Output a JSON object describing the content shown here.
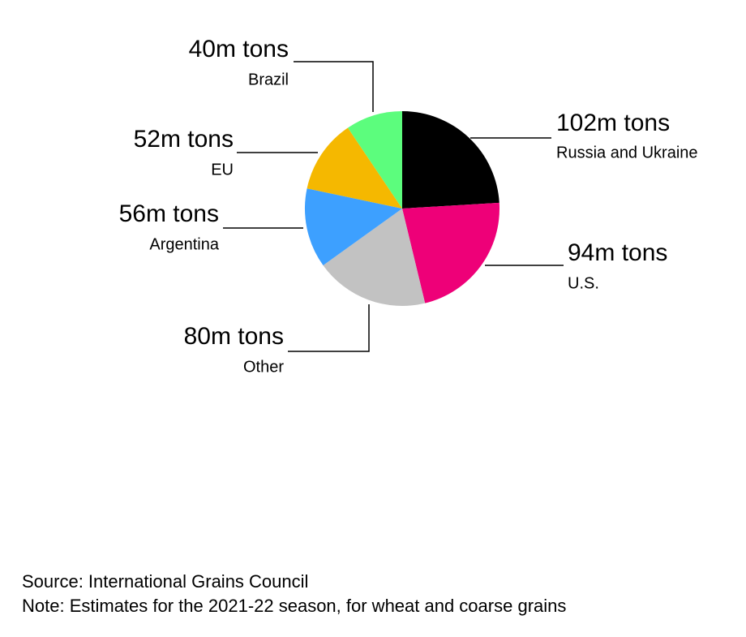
{
  "chart_data": {
    "type": "pie",
    "categories": [
      "Russia and Ukraine",
      "U.S.",
      "Other",
      "Argentina",
      "EU",
      "Brazil"
    ],
    "values": [
      102,
      94,
      80,
      56,
      52,
      40
    ],
    "value_labels": [
      "102m tons",
      "94m tons",
      "80m tons",
      "56m tons",
      "52m tons",
      "40m tons"
    ],
    "colors": [
      "#000000",
      "#ee0078",
      "#c2c2c2",
      "#3da0ff",
      "#f5b800",
      "#5cfd7d"
    ],
    "source": "Source: International Grains Council",
    "note": "Note: Estimates for the 2021-22 season, for wheat and coarse grains"
  }
}
